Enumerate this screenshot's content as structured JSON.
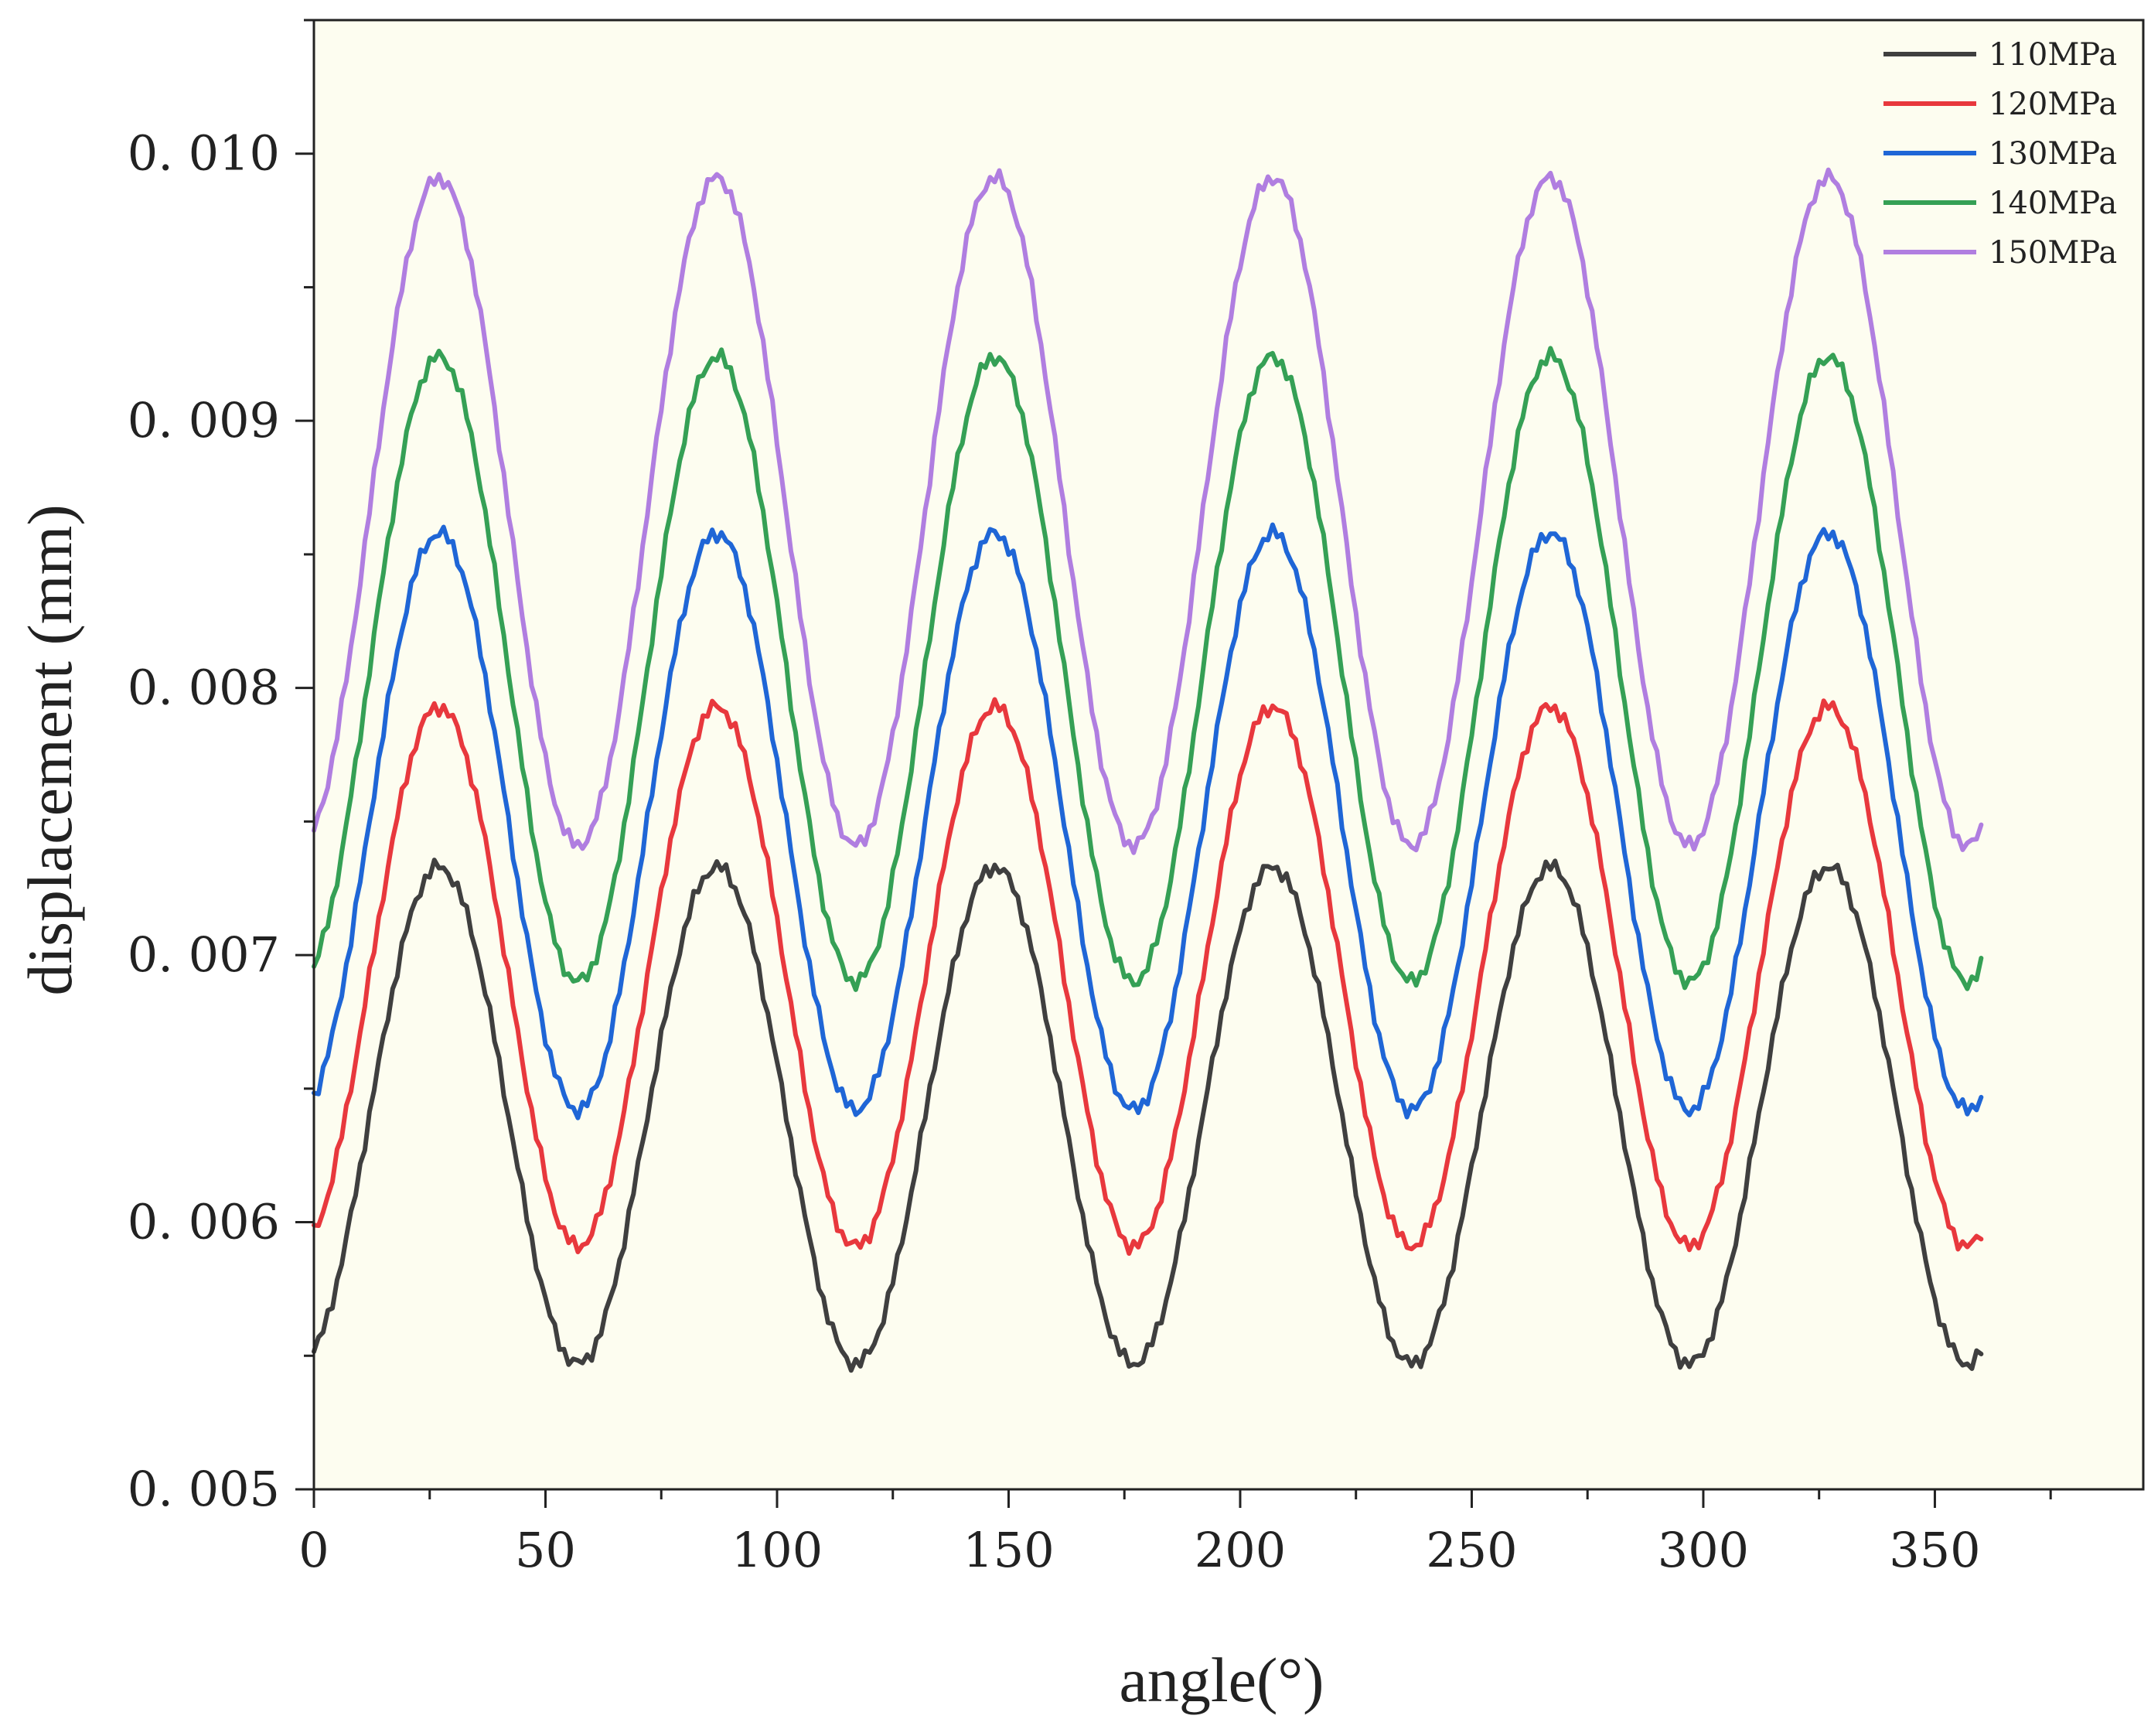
{
  "chart_data": {
    "type": "line",
    "title": "",
    "xlabel": "angle(°)",
    "ylabel": "displacement (mm)",
    "xlim": [
      0,
      395
    ],
    "ylim": [
      0.005,
      0.0105
    ],
    "xticks": [
      0,
      50,
      100,
      150,
      200,
      250,
      300,
      350
    ],
    "xtick_labels": [
      "0",
      "50",
      "100",
      "150",
      "200",
      "250",
      "300",
      "350"
    ],
    "yticks": [
      0.005,
      0.006,
      0.007,
      0.008,
      0.009,
      0.01
    ],
    "ytick_labels": [
      "0. 005",
      "0. 006",
      "0. 007",
      "0. 008",
      "0. 009",
      "0. 010"
    ],
    "background": "#fdfdf0",
    "grid": false,
    "legend_position": "top-right",
    "x_range_of_data": [
      0,
      360
    ],
    "period_deg": 60,
    "series": [
      {
        "name": "110MPa",
        "color": "#3f3f3f",
        "mean": 0.0064,
        "amplitude": 0.00093,
        "peaks_at": [
          27,
          87,
          147,
          207,
          267,
          327
        ],
        "troughs_at": [
          57,
          117,
          177,
          237,
          297,
          357
        ]
      },
      {
        "name": "120MPa",
        "color": "#e8383d",
        "mean": 0.00692,
        "amplitude": 0.00101,
        "peaks_at": [
          27,
          87,
          147,
          207,
          267,
          327
        ],
        "troughs_at": [
          57,
          117,
          177,
          237,
          297,
          357
        ]
      },
      {
        "name": "130MPa",
        "color": "#1f66d6",
        "mean": 0.0075,
        "amplitude": 0.00108,
        "peaks_at": [
          27,
          87,
          147,
          207,
          267,
          327
        ],
        "troughs_at": [
          57,
          117,
          177,
          237,
          297,
          357
        ]
      },
      {
        "name": "140MPa",
        "color": "#35a055",
        "mean": 0.00807,
        "amplitude": 0.00117,
        "peaks_at": [
          27,
          87,
          147,
          207,
          267,
          327
        ],
        "troughs_at": [
          57,
          117,
          177,
          237,
          297,
          357
        ]
      },
      {
        "name": "150MPa",
        "color": "#b07ee0",
        "mean": 0.00866,
        "amplitude": 0.00125,
        "peaks_at": [
          27,
          87,
          147,
          207,
          267,
          327
        ],
        "troughs_at": [
          57,
          117,
          177,
          237,
          297,
          357
        ]
      }
    ]
  }
}
